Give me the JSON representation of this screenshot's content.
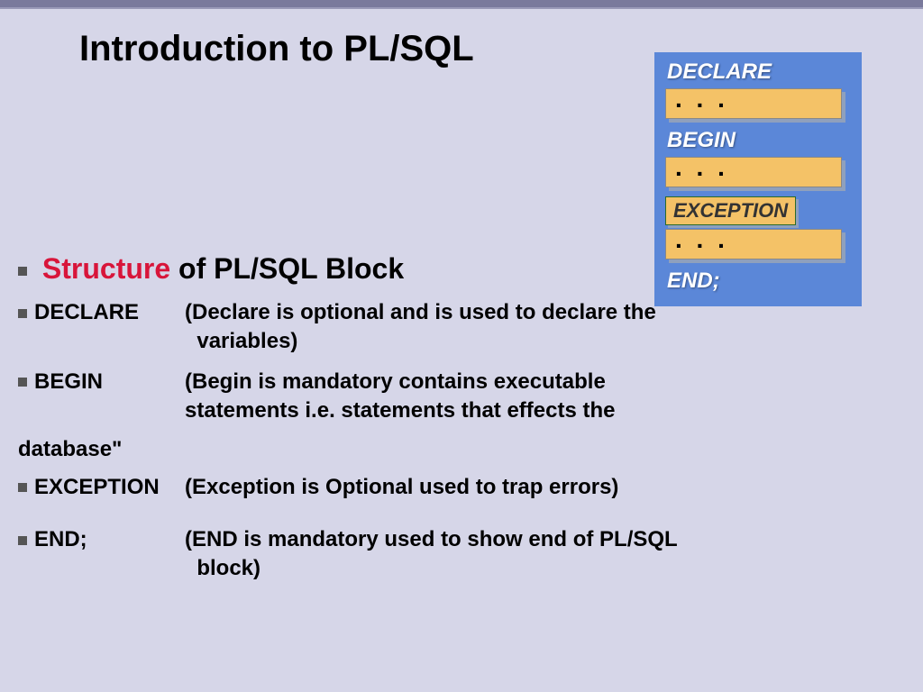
{
  "title": "Introduction to PL/SQL",
  "diagram": {
    "bg_color": "#5b87d8",
    "block_color": "#f4c267",
    "label_color": "#ffffff",
    "labels": {
      "declare": "DECLARE",
      "begin": "BEGIN",
      "exception": "EXCEPTION",
      "end": "END;"
    },
    "dots": ". . ."
  },
  "subheading": {
    "bullet": "▪",
    "highlight": "Structure",
    "rest": " of PL/SQL Block"
  },
  "items": [
    {
      "keyword": "DECLARE",
      "desc_line1": "(Declare is optional and is used to declare the",
      "desc_line2": "variables)"
    },
    {
      "keyword": "BEGIN",
      "desc_line1": "(Begin is mandatory contains executable",
      "desc_line2": "statements i.e. statements that effects the"
    }
  ],
  "database_tail": "database\"",
  "exception_item": {
    "keyword": "EXCEPTION",
    "desc": "(Exception is Optional used to trap errors)"
  },
  "end_item": {
    "keyword": "END;",
    "desc_line1": "(END is mandatory used to show end of PL/SQL",
    "desc_line2": "block)"
  },
  "colors": {
    "slide_bg": "#d6d6e8",
    "topbar": "#7a7a9c",
    "highlight_text": "#d8153a",
    "text": "#000000"
  }
}
